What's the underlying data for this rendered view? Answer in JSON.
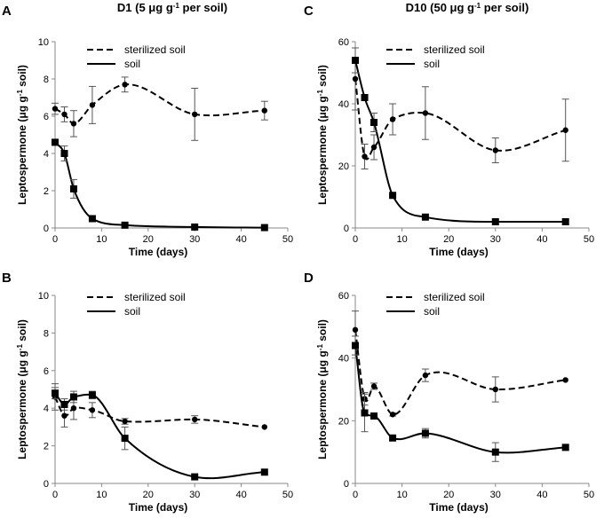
{
  "chart_data": [
    {
      "panel": "A",
      "type": "line",
      "title": "D1 (5 μg g⁻¹ per soil)",
      "xlabel": "Time (days)",
      "ylabel": "Leptospermone (μg g⁻¹ soil)",
      "xlim": [
        0,
        50
      ],
      "xticks": [
        0,
        10,
        20,
        30,
        40,
        50
      ],
      "ylim": [
        0,
        10
      ],
      "yticks": [
        0,
        2,
        4,
        6,
        8,
        10
      ],
      "legend": [
        "sterilized soil",
        "soil"
      ],
      "series": [
        {
          "name": "sterilized soil",
          "style": "dashed",
          "marker": "circle",
          "x": [
            0,
            2,
            4,
            8,
            15,
            30,
            45
          ],
          "y": [
            6.4,
            6.1,
            5.6,
            6.6,
            7.7,
            6.1,
            6.3
          ],
          "err": [
            0.3,
            0.4,
            0.7,
            1.0,
            0.4,
            1.4,
            0.5
          ]
        },
        {
          "name": "soil",
          "style": "solid",
          "marker": "square",
          "x": [
            0,
            2,
            4,
            8,
            15,
            30,
            45
          ],
          "y": [
            4.6,
            4.0,
            2.1,
            0.5,
            0.15,
            0.05,
            0.02
          ],
          "err": [
            0,
            0.4,
            0.5,
            0,
            0,
            0,
            0
          ]
        }
      ]
    },
    {
      "panel": "C",
      "type": "line",
      "title": "D10 (50 μg g⁻¹ per soil)",
      "xlabel": "Time (days)",
      "ylabel": "Leptospermone (μg g⁻¹ soil)",
      "xlim": [
        0,
        50
      ],
      "xticks": [
        0,
        10,
        20,
        30,
        40,
        50
      ],
      "ylim": [
        0,
        60
      ],
      "yticks": [
        0,
        20,
        40,
        60
      ],
      "legend": [
        "sterilized soil",
        "soil"
      ],
      "series": [
        {
          "name": "sterilized soil",
          "style": "dashed",
          "marker": "circle",
          "x": [
            0,
            2,
            4,
            8,
            15,
            30,
            45
          ],
          "y": [
            48,
            23,
            26,
            35,
            37,
            25,
            31.5
          ],
          "err": [
            10,
            4,
            4,
            5,
            8.5,
            4,
            10
          ]
        },
        {
          "name": "soil",
          "style": "solid",
          "marker": "square",
          "x": [
            0,
            2,
            4,
            8,
            15,
            30,
            45
          ],
          "y": [
            54,
            42,
            34,
            10.5,
            3.5,
            2,
            2
          ],
          "err": [
            4,
            0,
            3,
            0,
            0,
            0,
            0
          ]
        }
      ]
    },
    {
      "panel": "B",
      "type": "line",
      "title": "",
      "xlabel": "Time (days)",
      "ylabel": "Leptospermone (μg g⁻¹ soil)",
      "xlim": [
        0,
        50
      ],
      "xticks": [
        0,
        10,
        20,
        30,
        40,
        50
      ],
      "ylim": [
        0,
        10
      ],
      "yticks": [
        0,
        2,
        4,
        6,
        8,
        10
      ],
      "legend": [
        "sterilized soil",
        "soil"
      ],
      "series": [
        {
          "name": "sterilized soil",
          "style": "dashed",
          "marker": "circle",
          "x": [
            0,
            2,
            4,
            8,
            15,
            30,
            45
          ],
          "y": [
            4.6,
            3.6,
            4.0,
            3.9,
            3.3,
            3.4,
            3.0
          ],
          "err": [
            0.7,
            0.6,
            0.6,
            0.4,
            0.15,
            0.2,
            0
          ]
        },
        {
          "name": "soil",
          "style": "solid",
          "marker": "square",
          "x": [
            0,
            2,
            4,
            8,
            15,
            30,
            45
          ],
          "y": [
            4.8,
            4.2,
            4.6,
            4.7,
            2.4,
            0.35,
            0.6
          ],
          "err": [
            0.3,
            0.3,
            0.3,
            0.2,
            0.6,
            0,
            0
          ]
        }
      ]
    },
    {
      "panel": "D",
      "type": "line",
      "title": "",
      "xlabel": "Time (days)",
      "ylabel": "Leptospermone (μg g⁻¹ soil)",
      "xlim": [
        0,
        50
      ],
      "xticks": [
        0,
        10,
        20,
        30,
        40,
        50
      ],
      "ylim": [
        0,
        60
      ],
      "yticks": [
        0,
        20,
        40,
        60
      ],
      "legend": [
        "sterilized soil",
        "soil"
      ],
      "series": [
        {
          "name": "sterilized soil",
          "style": "dashed",
          "marker": "circle",
          "x": [
            0,
            2,
            4,
            8,
            15,
            30,
            45
          ],
          "y": [
            49,
            27,
            31,
            22,
            34.5,
            30,
            33
          ],
          "err": [
            6,
            2,
            1,
            0.5,
            2,
            4,
            0
          ]
        },
        {
          "name": "soil",
          "style": "solid",
          "marker": "square",
          "x": [
            0,
            2,
            4,
            8,
            15,
            30,
            45
          ],
          "y": [
            44,
            22.5,
            21.5,
            14.5,
            16,
            10,
            11.5
          ],
          "err": [
            3,
            6,
            0,
            0,
            1.5,
            3,
            0
          ]
        }
      ]
    }
  ]
}
